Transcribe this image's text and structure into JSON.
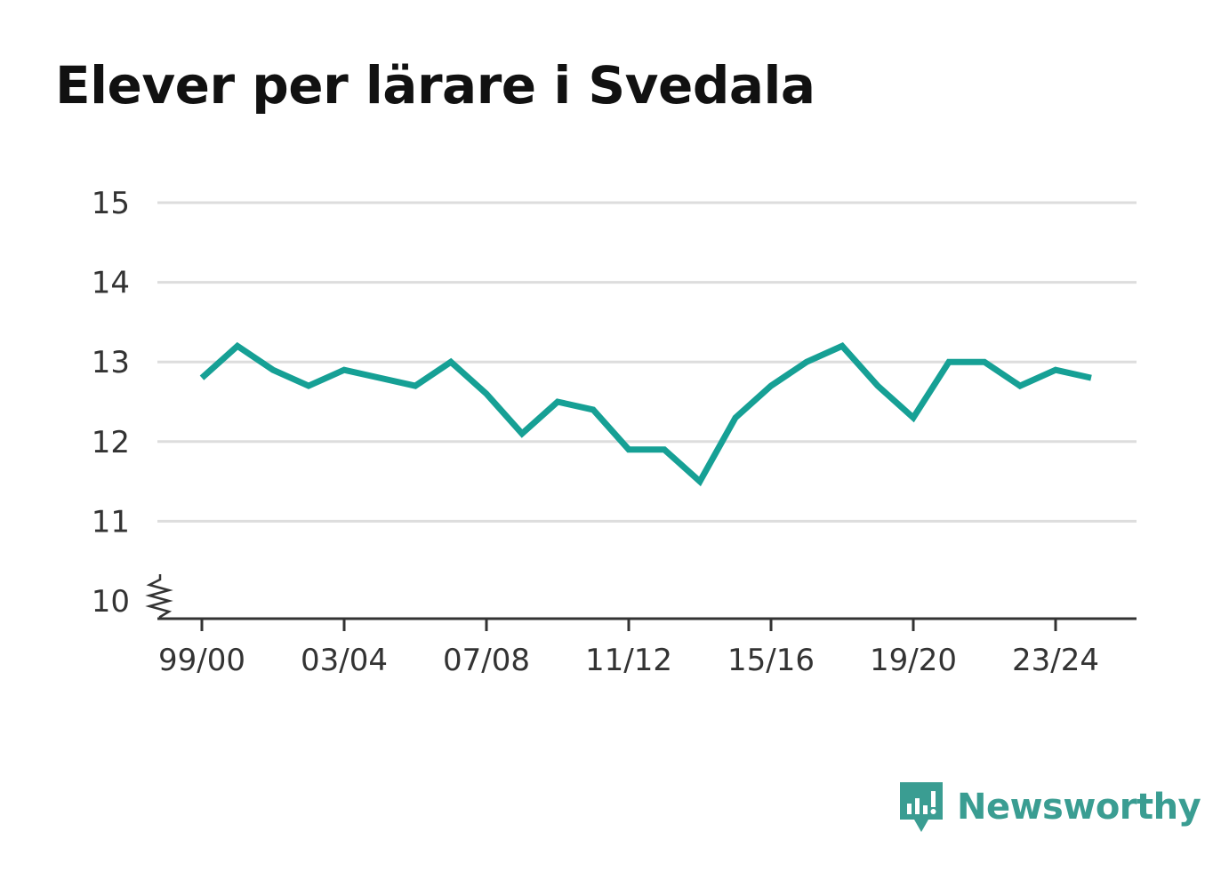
{
  "title": "Elever per lärare i Svedala",
  "brand": {
    "name": "Newsworthy",
    "color": "#3a9d92",
    "icon": "bar-chart-speech-bubble-icon"
  },
  "colors": {
    "line": "#16a095",
    "grid": "#dddddd",
    "axis": "#333333"
  },
  "chart_data": {
    "type": "line",
    "title": "Elever per lärare i Svedala",
    "xlabel": "",
    "ylabel": "",
    "ylim": [
      10,
      15
    ],
    "y_axis_break": true,
    "yticks": [
      "10",
      "11",
      "12",
      "13",
      "14",
      "15"
    ],
    "xticks": [
      "99/00",
      "03/04",
      "07/08",
      "11/12",
      "15/16",
      "19/20",
      "23/24"
    ],
    "grid": true,
    "categories": [
      "99/00",
      "00/01",
      "01/02",
      "02/03",
      "03/04",
      "04/05",
      "05/06",
      "06/07",
      "07/08",
      "08/09",
      "09/10",
      "10/11",
      "11/12",
      "12/13",
      "13/14",
      "14/15",
      "15/16",
      "16/17",
      "17/18",
      "18/19",
      "19/20",
      "20/21",
      "21/22",
      "22/23",
      "23/24",
      "24/25"
    ],
    "series": [
      {
        "values": [
          12.8,
          13.2,
          12.9,
          12.7,
          12.9,
          12.8,
          12.7,
          13.0,
          12.6,
          12.1,
          12.5,
          12.4,
          11.9,
          11.9,
          11.5,
          12.3,
          12.7,
          13.0,
          13.2,
          12.7,
          12.3,
          13.0,
          13.0,
          12.7,
          12.9,
          12.8
        ]
      }
    ]
  }
}
